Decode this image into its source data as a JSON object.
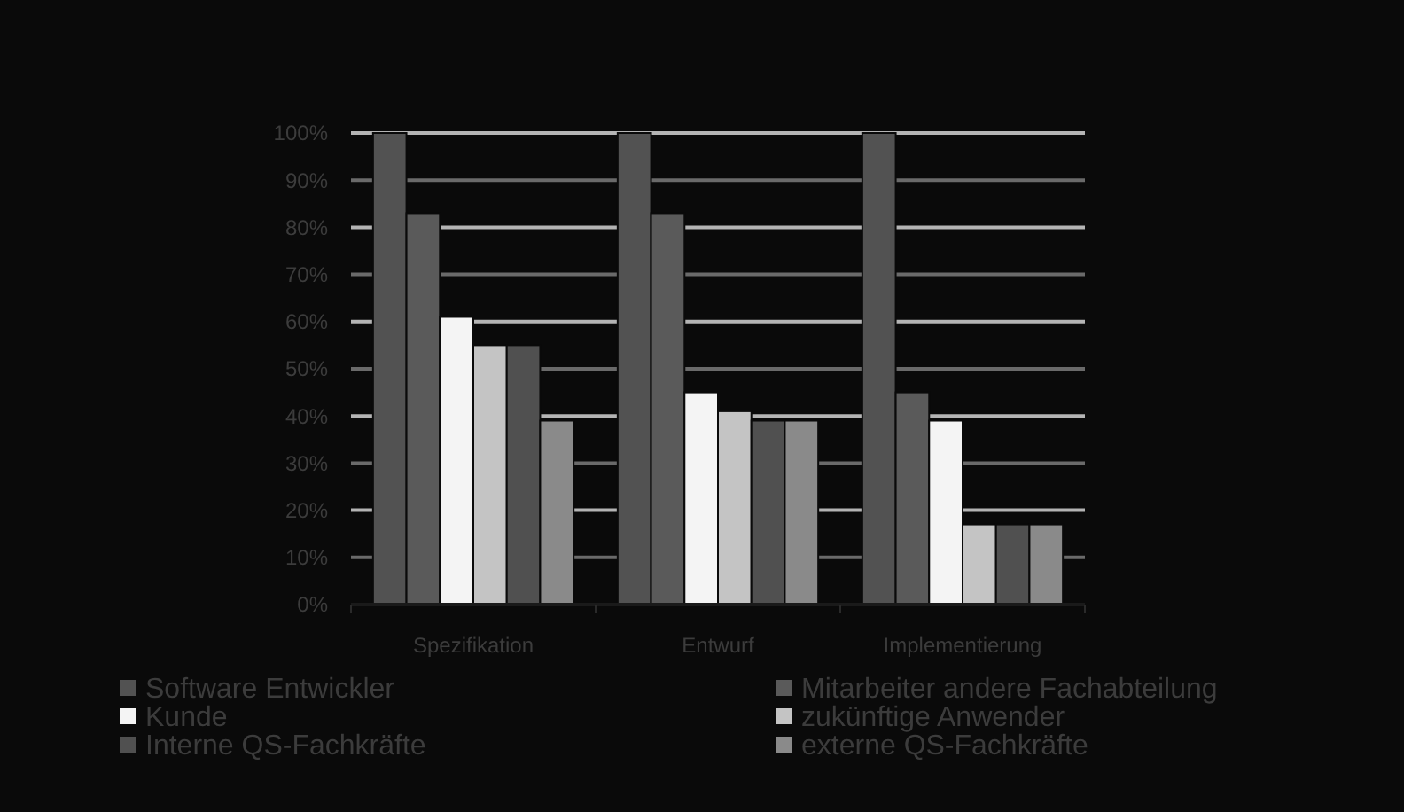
{
  "chart_data": {
    "type": "bar",
    "categories": [
      "Spezifikation",
      "Entwurf",
      "Implementierung"
    ],
    "series": [
      {
        "name": "Software Entwickler",
        "color": "#525252",
        "values": [
          100,
          100,
          100
        ]
      },
      {
        "name": "Mitarbeiter andere Fachabteilung",
        "color": "#5a5a5a",
        "values": [
          83,
          83,
          45
        ]
      },
      {
        "name": "Kunde",
        "color": "#f4f4f4",
        "values": [
          61,
          45,
          39
        ]
      },
      {
        "name": "zukünftige Anwender",
        "color": "#c4c4c4",
        "values": [
          55,
          41,
          17
        ]
      },
      {
        "name": "Interne QS-Fachkräfte",
        "color": "#505050",
        "values": [
          55,
          39,
          17
        ]
      },
      {
        "name": "externe QS-Fachkräfte",
        "color": "#8a8a8a",
        "values": [
          39,
          39,
          17
        ]
      }
    ],
    "ylim": [
      0,
      100
    ],
    "yticks": [
      {
        "value": 0,
        "label": "0%"
      },
      {
        "value": 10,
        "label": "10%"
      },
      {
        "value": 20,
        "label": "20%"
      },
      {
        "value": 30,
        "label": "30%"
      },
      {
        "value": 40,
        "label": "40%"
      },
      {
        "value": 50,
        "label": "50%"
      },
      {
        "value": 60,
        "label": "60%"
      },
      {
        "value": 70,
        "label": "70%"
      },
      {
        "value": 80,
        "label": "80%"
      },
      {
        "value": 90,
        "label": "90%"
      },
      {
        "value": 100,
        "label": "100%"
      }
    ],
    "grid": "y",
    "legend": "bottom"
  }
}
